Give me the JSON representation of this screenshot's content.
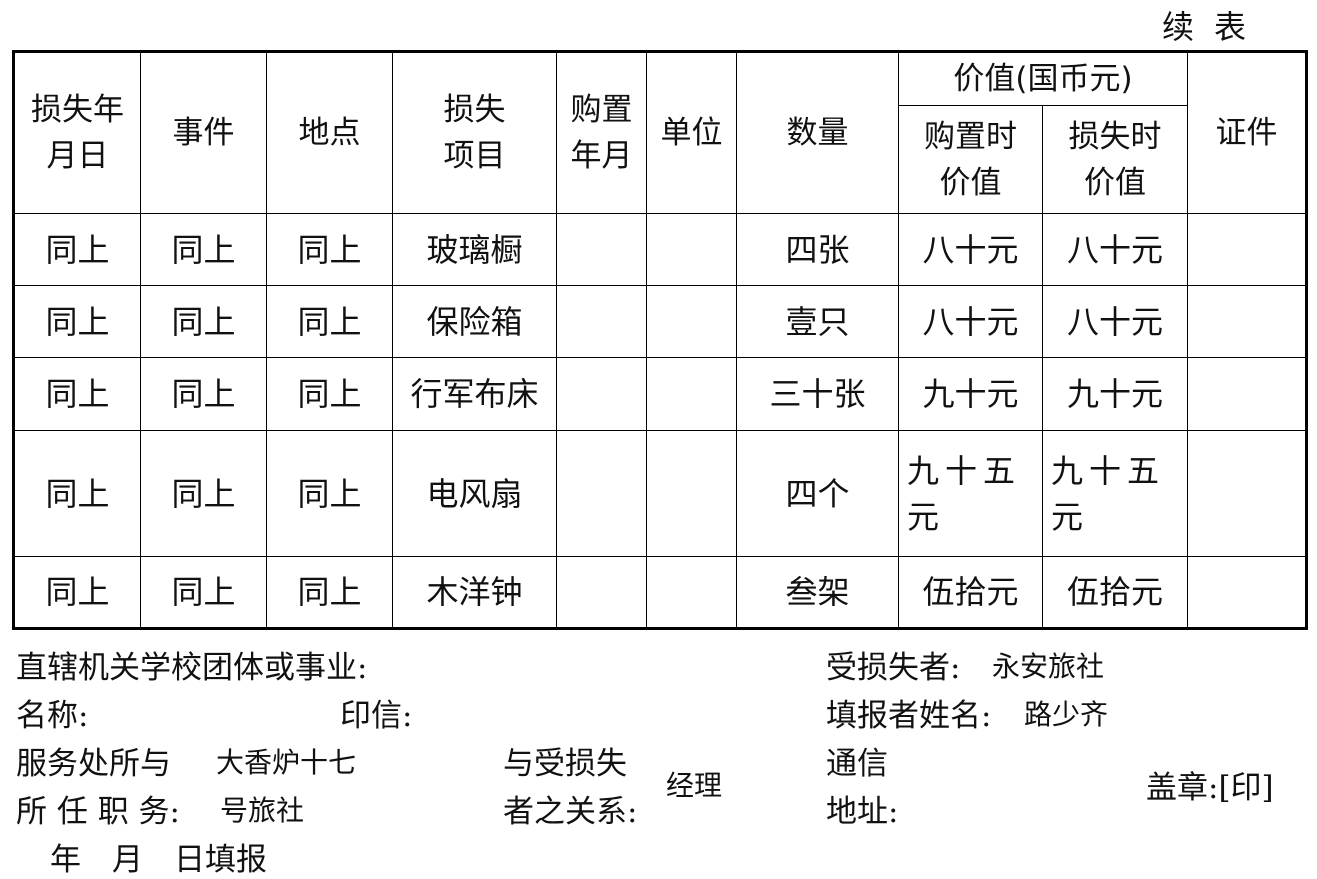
{
  "title": "续表",
  "headers": {
    "date": "损失年月日",
    "event": "事件",
    "place": "地点",
    "item": "损失项目",
    "purchase_date": "购置年月",
    "unit": "单位",
    "quantity": "数量",
    "value_group": "价值(国币元)",
    "value_purchase": "购置时价值",
    "value_loss": "损失时价值",
    "certificate": "证件"
  },
  "rows": [
    {
      "date": "同上",
      "event": "同上",
      "place": "同上",
      "item": "玻璃橱",
      "purchase_date": "",
      "unit": "",
      "quantity": "四张",
      "value_purchase": "八十元",
      "value_loss": "八十元",
      "certificate": ""
    },
    {
      "date": "同上",
      "event": "同上",
      "place": "同上",
      "item": "保险箱",
      "purchase_date": "",
      "unit": "",
      "quantity": "壹只",
      "value_purchase": "八十元",
      "value_loss": "八十元",
      "certificate": ""
    },
    {
      "date": "同上",
      "event": "同上",
      "place": "同上",
      "item": "行军布床",
      "purchase_date": "",
      "unit": "",
      "quantity": "三十张",
      "value_purchase": "九十元",
      "value_loss": "九十元",
      "certificate": ""
    },
    {
      "date": "同上",
      "event": "同上",
      "place": "同上",
      "item": "电风扇",
      "purchase_date": "",
      "unit": "",
      "quantity": "四个",
      "value_purchase": "九十五元",
      "value_loss": "九十五元",
      "certificate": ""
    },
    {
      "date": "同上",
      "event": "同上",
      "place": "同上",
      "item": "木洋钟",
      "purchase_date": "",
      "unit": "",
      "quantity": "叁架",
      "value_purchase": "伍拾元",
      "value_loss": "伍拾元",
      "certificate": ""
    }
  ],
  "footer": {
    "org": "直辖机关学校团体或事业:",
    "name": "名称:",
    "seal": "印信:",
    "service_line1": "服务处所与",
    "service_value1": "大香炉十七",
    "service_line2": "所 任 职 务:",
    "service_value2": "号旅社",
    "relation_line1": "与受损失",
    "relation_line2": "者之关系:",
    "relation_value": "经理",
    "victim": "受损失者:",
    "victim_value": "永安旅社",
    "reporter": "填报者姓名:",
    "reporter_value": "路少齐",
    "address_line1": "通信",
    "address_line2": "地址:",
    "stamp": "盖章:[印]",
    "date_line": "年　月　日填报"
  }
}
